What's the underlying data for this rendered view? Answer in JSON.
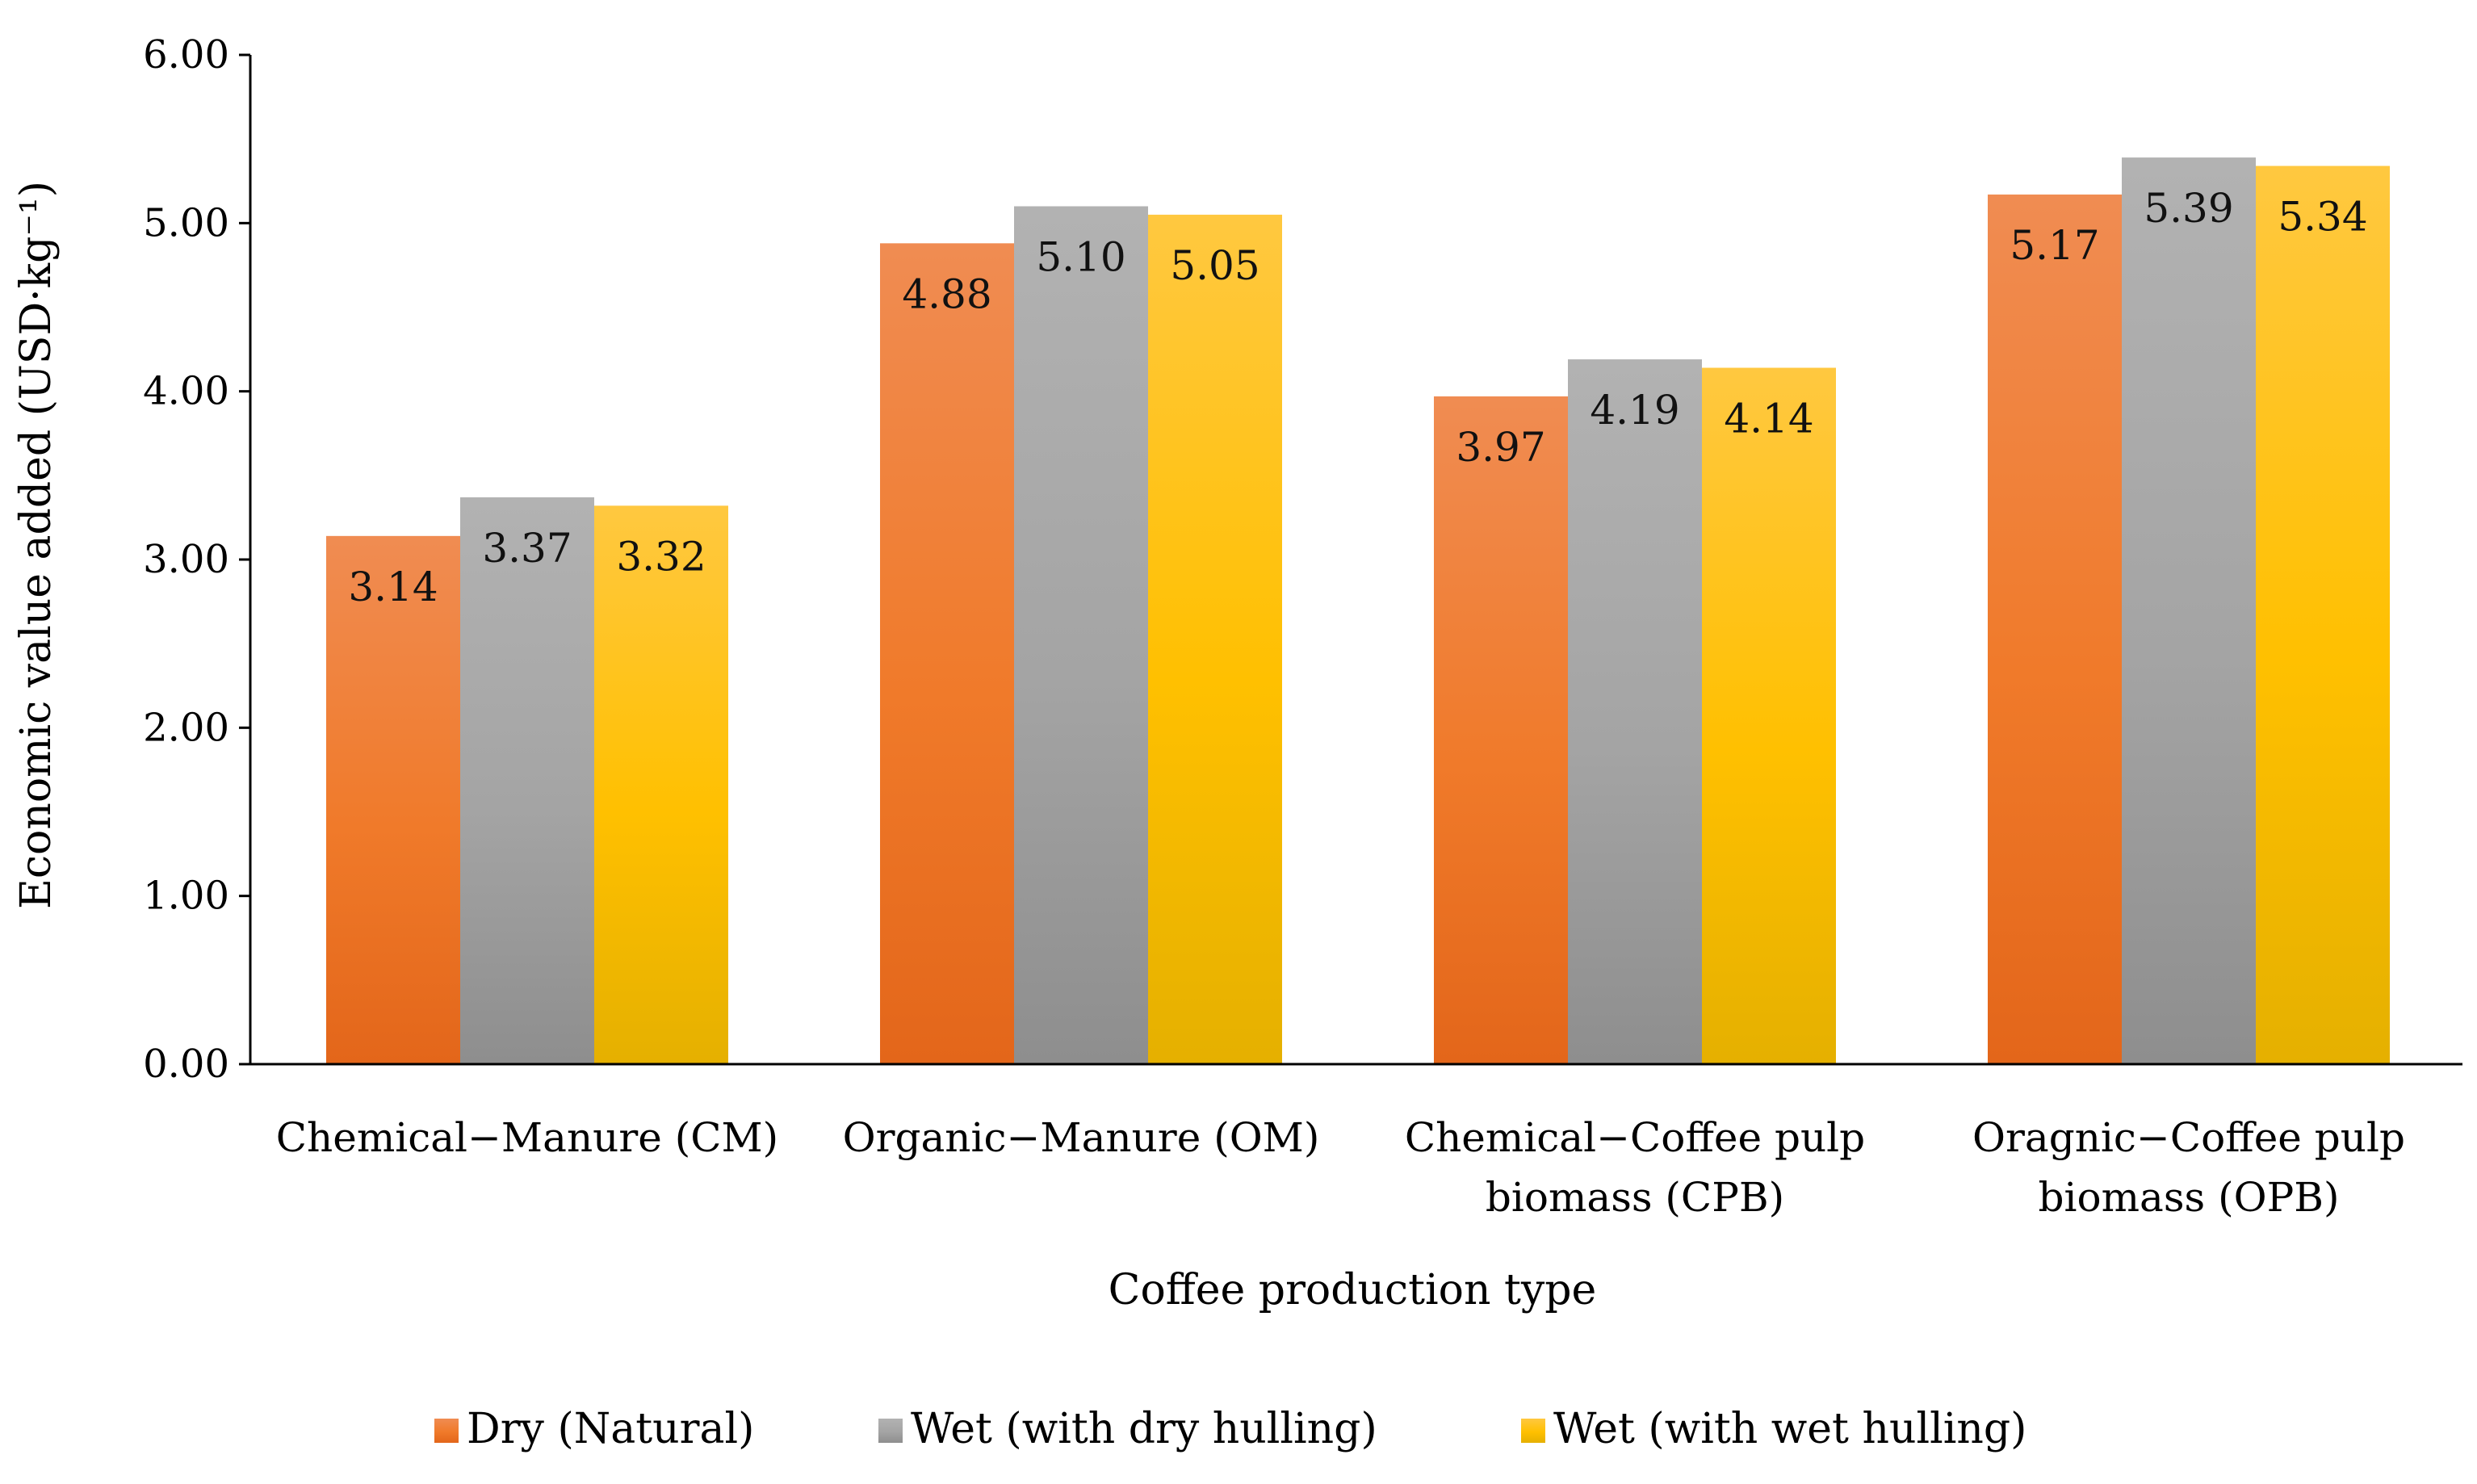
{
  "chart_data": {
    "type": "bar",
    "title": "",
    "xlabel": "Coffee production type",
    "ylabel": "Economic value added (USD·kg⁻¹)",
    "ylim": [
      0,
      6
    ],
    "yticks": [
      "0.00",
      "1.00",
      "2.00",
      "3.00",
      "4.00",
      "5.00",
      "6.00"
    ],
    "grid": false,
    "legend_position": "bottom",
    "categories": [
      [
        "Chemical−Manure (CM)"
      ],
      [
        "Organic−Manure (OM)"
      ],
      [
        "Chemical−Coffee pulp",
        "biomass (CPB)"
      ],
      [
        "Oragnic−Coffee pulp",
        "biomass (OPB)"
      ]
    ],
    "series": [
      {
        "name": "Dry (Natural)",
        "values": [
          3.14,
          4.88,
          3.97,
          5.17
        ],
        "labels": [
          "3.14",
          "4.88",
          "3.97",
          "5.17"
        ],
        "color_top": "#F08C52",
        "color_mid": "#F07A2A",
        "color_bottom": "#E3661A"
      },
      {
        "name": "Wet (with dry hulling)",
        "values": [
          3.37,
          5.1,
          4.19,
          5.39
        ],
        "labels": [
          "3.37",
          "5.10",
          "4.19",
          "5.39"
        ],
        "color_top": "#B2B2B2",
        "color_mid": "#A4A4A4",
        "color_bottom": "#8E8E8E"
      },
      {
        "name": "Wet (with wet hulling)",
        "values": [
          3.32,
          5.05,
          4.14,
          5.34
        ],
        "labels": [
          "3.32",
          "5.05",
          "4.14",
          "5.34"
        ],
        "color_top": "#FFC840",
        "color_mid": "#FFC000",
        "color_bottom": "#E5B000"
      }
    ]
  }
}
